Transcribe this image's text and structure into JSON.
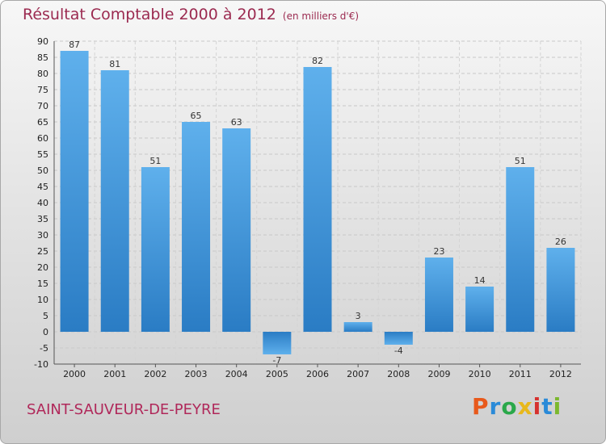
{
  "chart_data": {
    "type": "bar",
    "title": "Résultat Comptable 2000 à 2012",
    "subtitle": "(en milliers d'€)",
    "categories": [
      "2000",
      "2001",
      "2002",
      "2003",
      "2004",
      "2005",
      "2006",
      "2007",
      "2008",
      "2009",
      "2010",
      "2011",
      "2012"
    ],
    "values": [
      87,
      81,
      51,
      65,
      63,
      -7,
      82,
      3,
      -4,
      23,
      14,
      51,
      26
    ],
    "ylim": [
      -10,
      90
    ],
    "ytick_step": 5,
    "grid": true,
    "xlabel": "",
    "ylabel": "",
    "bar_color": "#3d8fd6"
  },
  "footer": {
    "place_name": "SAINT-SAUVEUR-DE-PEYRE",
    "logo_letters": [
      "P",
      "r",
      "o",
      "x",
      "i",
      "t",
      "i"
    ],
    "logo_colors": [
      "#e8591b",
      "#2a8ad8",
      "#2aa84a",
      "#e8b81b",
      "#d6322f",
      "#2a8ad8",
      "#7cb82f"
    ]
  }
}
